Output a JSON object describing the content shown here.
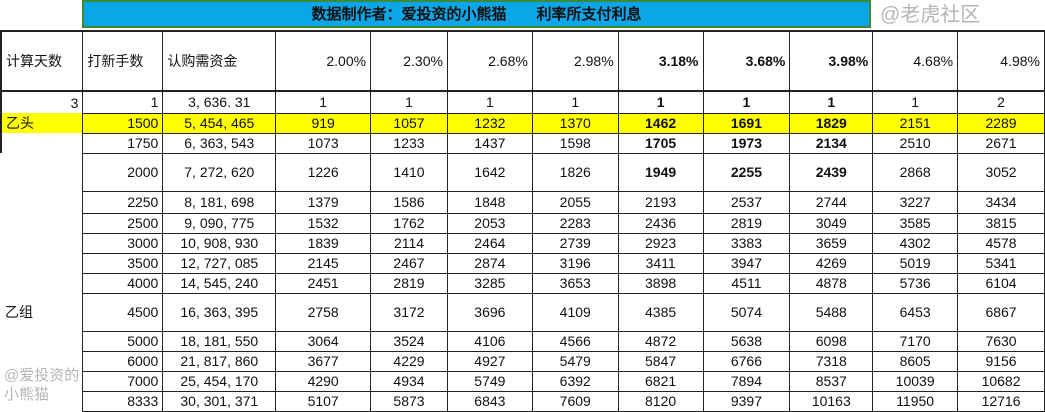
{
  "title": "数据制作者：爱投资的小熊猫　　利率所支付利息",
  "headers": [
    "计算天数",
    "打新手数",
    "认购需资金",
    "2.00%",
    "2.30%",
    "2.68%",
    "2.98%",
    "3.18%",
    "3.68%",
    "3.98%",
    "4.68%",
    "4.98%"
  ],
  "bold_columns": [
    7,
    8,
    9
  ],
  "highlight_color": "#ffff00",
  "rows": [
    {
      "label": "3",
      "lots": "1",
      "funds": "3, 636. 31",
      "vals": [
        "1",
        "1",
        "1",
        "1",
        "1",
        "1",
        "1",
        "1",
        "2"
      ]
    },
    {
      "label": "乙头",
      "lots": "1500",
      "funds": "5, 454, 465",
      "vals": [
        "919",
        "1057",
        "1232",
        "1370",
        "1462",
        "1691",
        "1829",
        "2151",
        "2289"
      ]
    },
    {
      "label": "",
      "lots": "1750",
      "funds": "6, 363, 543",
      "vals": [
        "1073",
        "1233",
        "1437",
        "1598",
        "1705",
        "1973",
        "2134",
        "2510",
        "2671"
      ]
    },
    {
      "label": "",
      "lots": "2000",
      "funds": "7, 272, 620",
      "vals": [
        "1226",
        "1410",
        "1642",
        "1826",
        "1949",
        "2255",
        "2439",
        "2868",
        "3052"
      ]
    },
    {
      "label": "",
      "lots": "2250",
      "funds": "8, 181, 698",
      "vals": [
        "1379",
        "1586",
        "1848",
        "2055",
        "2193",
        "2537",
        "2744",
        "3227",
        "3434"
      ]
    },
    {
      "label": "",
      "lots": "2500",
      "funds": "9, 090, 775",
      "vals": [
        "1532",
        "1762",
        "2053",
        "2283",
        "2436",
        "2819",
        "3049",
        "3585",
        "3815"
      ]
    },
    {
      "label": "",
      "lots": "3000",
      "funds": "10, 908, 930",
      "vals": [
        "1839",
        "2114",
        "2464",
        "2739",
        "2923",
        "3383",
        "3659",
        "4302",
        "4578"
      ]
    },
    {
      "label": "",
      "lots": "3500",
      "funds": "12, 727, 085",
      "vals": [
        "2145",
        "2467",
        "2874",
        "3196",
        "3411",
        "3947",
        "4269",
        "5019",
        "5341"
      ]
    },
    {
      "label": "",
      "lots": "4000",
      "funds": "14, 545, 240",
      "vals": [
        "2451",
        "2819",
        "3285",
        "3653",
        "3898",
        "4511",
        "4878",
        "5736",
        "6104"
      ]
    },
    {
      "label": "乙组",
      "lots": "4500",
      "funds": "16, 363, 395",
      "vals": [
        "2758",
        "3172",
        "3696",
        "4109",
        "4385",
        "5074",
        "5488",
        "6453",
        "6867"
      ]
    },
    {
      "label": "",
      "lots": "5000",
      "funds": "18, 181, 550",
      "vals": [
        "3064",
        "3524",
        "4106",
        "4566",
        "4872",
        "5638",
        "6098",
        "7170",
        "7630"
      ]
    },
    {
      "label": "",
      "lots": "6000",
      "funds": "21, 817, 860",
      "vals": [
        "3677",
        "4229",
        "4927",
        "5479",
        "5847",
        "6766",
        "7318",
        "8605",
        "9156"
      ]
    },
    {
      "label": "",
      "lots": "7000",
      "funds": "25, 454, 170",
      "vals": [
        "4290",
        "4934",
        "5749",
        "6392",
        "6821",
        "7894",
        "8537",
        "10039",
        "10682"
      ]
    },
    {
      "label": "",
      "lots": "8333",
      "funds": "30, 301, 371",
      "vals": [
        "5107",
        "5873",
        "6843",
        "7609",
        "8120",
        "9397",
        "10163",
        "11950",
        "12716"
      ]
    }
  ],
  "watermarks": [
    "@老虎社区",
    "@爱投资的小熊猫"
  ]
}
